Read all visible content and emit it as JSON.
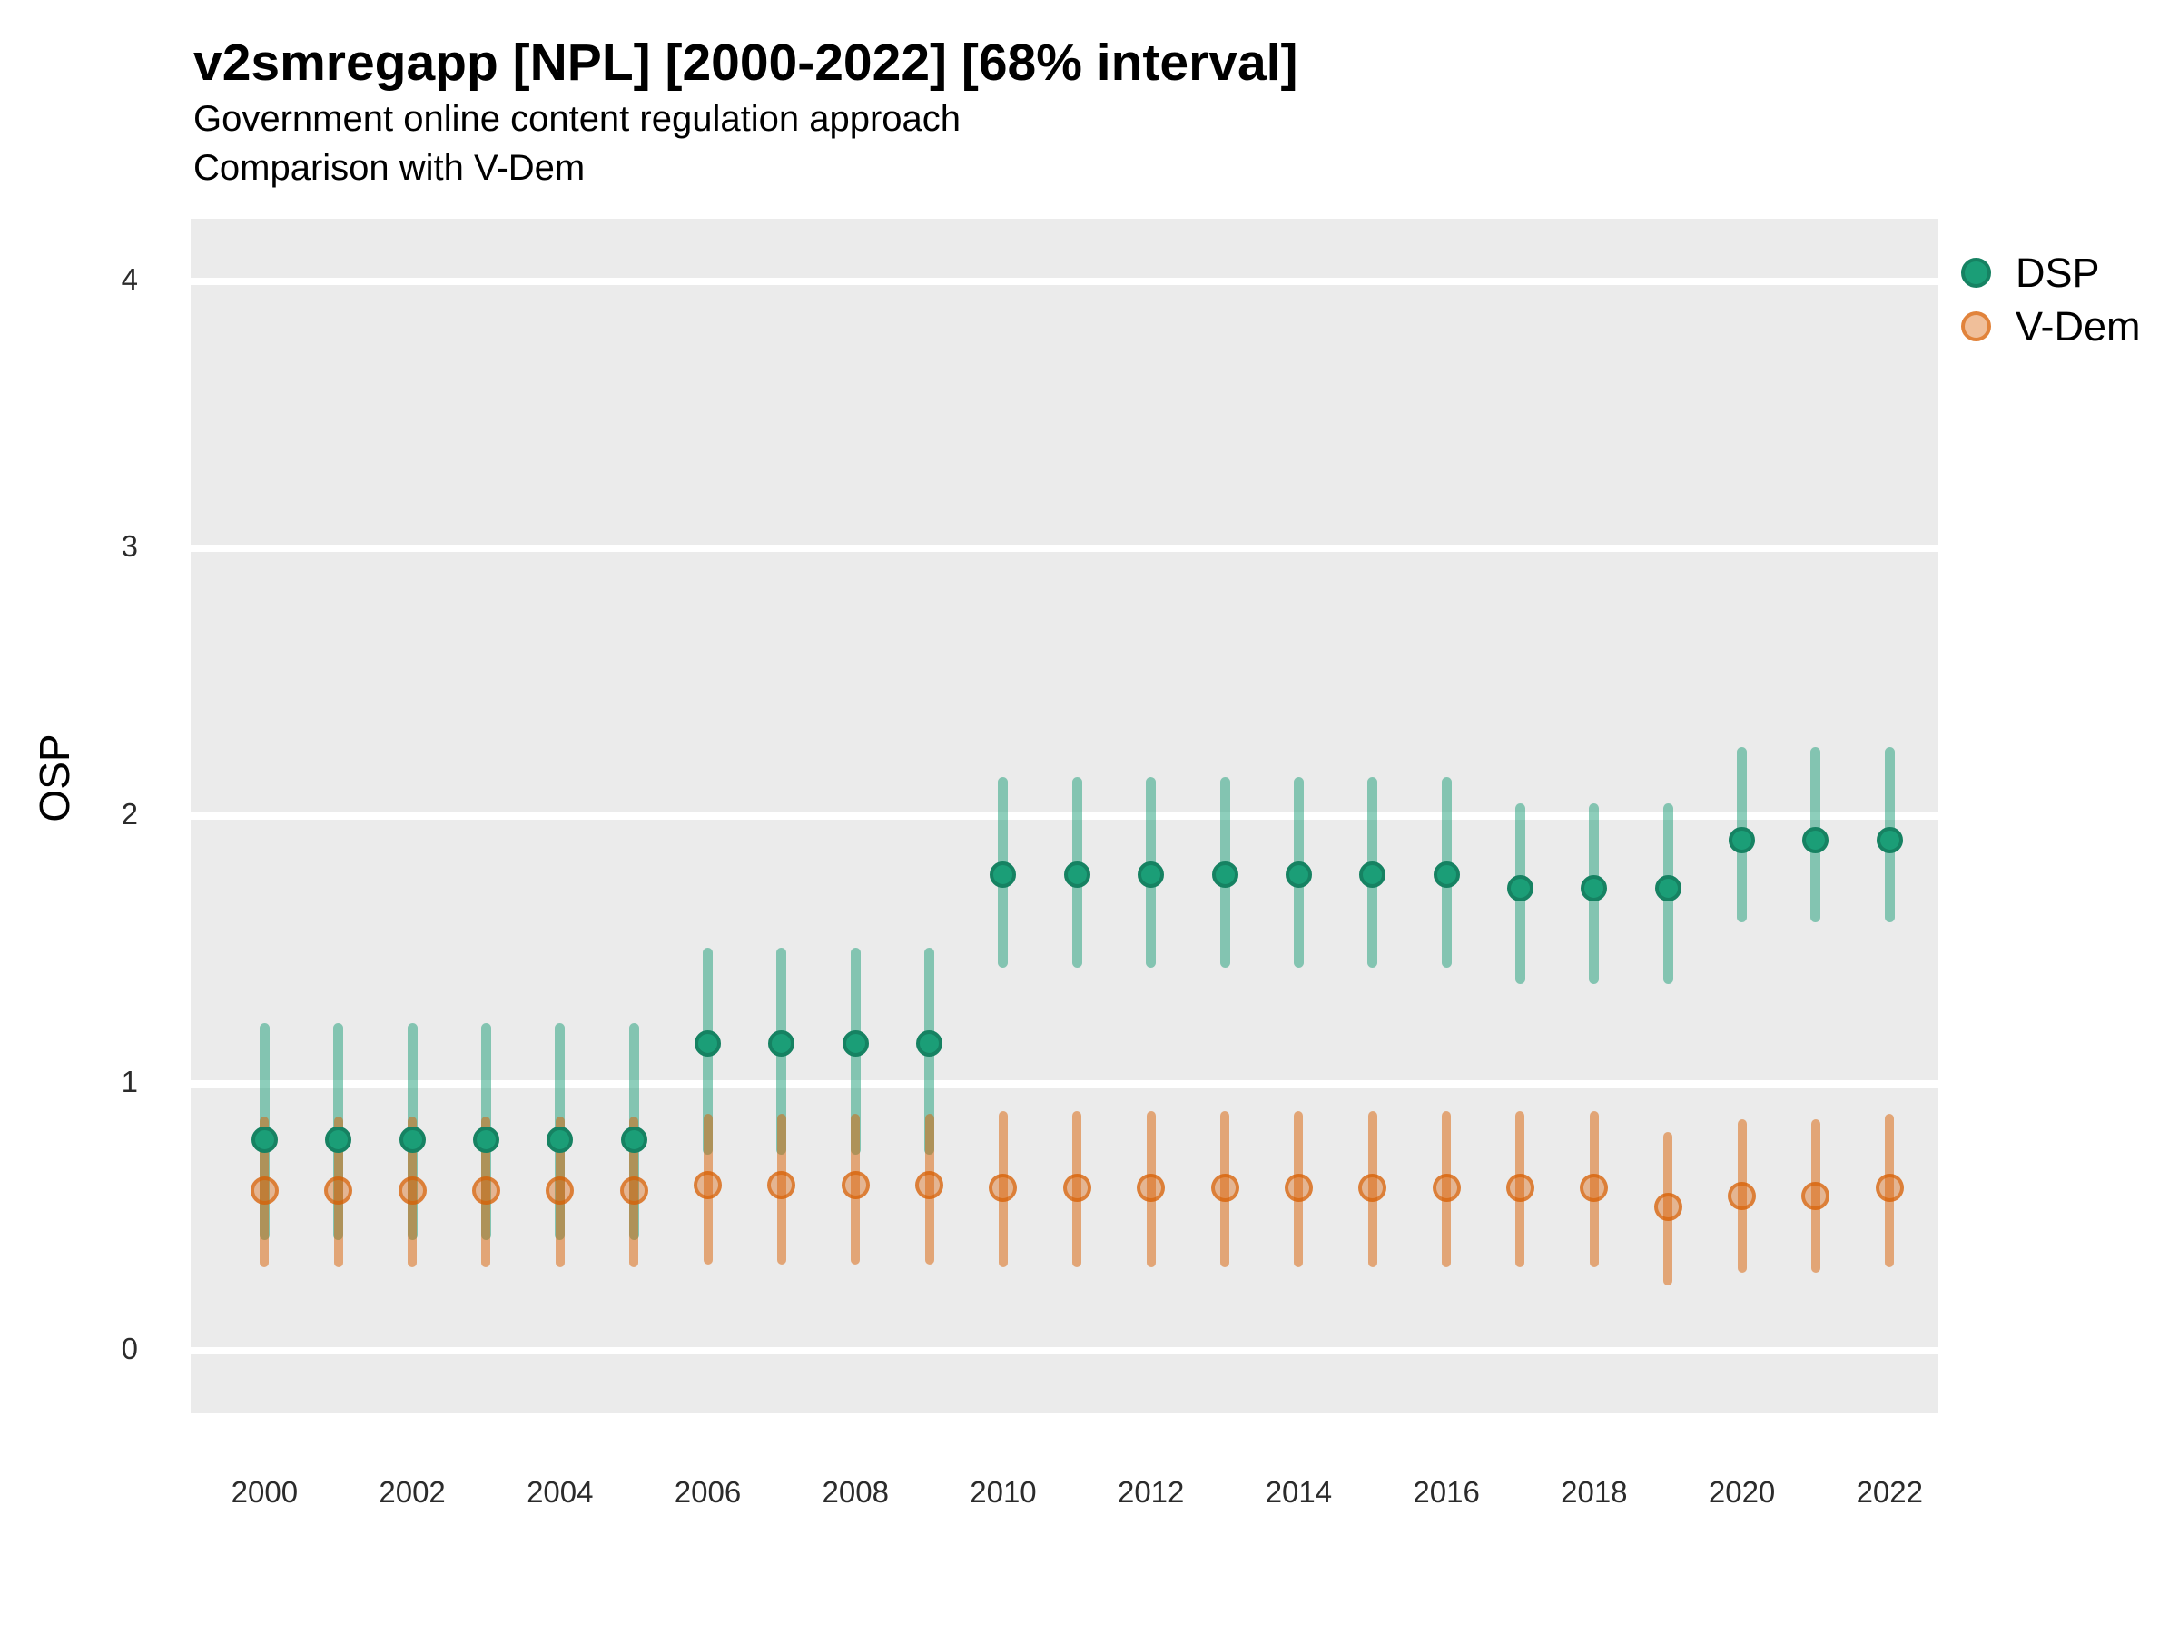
{
  "chart_data": {
    "type": "pointrange",
    "title": "v2smregapp [NPL] [2000-2022] [68% interval]",
    "subtitle_line1": "Government online content regulation approach",
    "subtitle_line2": "Comparison with V-Dem",
    "ylabel": "OSP",
    "xlabel": "",
    "panel_background": "#EBEBEB",
    "gridline_color": "#FFFFFF",
    "grid": "major horizontal only",
    "legend_position": "right-top",
    "xlim": [
      1999.0,
      2022.66
    ],
    "ylim": [
      -0.234,
      4.234
    ],
    "y_ticks": [
      0,
      1,
      2,
      3,
      4
    ],
    "x_tick_labels": [
      2000,
      2002,
      2004,
      2006,
      2008,
      2010,
      2012,
      2014,
      2016,
      2018,
      2020,
      2022
    ],
    "years": [
      2000,
      2001,
      2002,
      2003,
      2004,
      2005,
      2006,
      2007,
      2008,
      2009,
      2010,
      2011,
      2012,
      2013,
      2014,
      2015,
      2016,
      2017,
      2018,
      2019,
      2020,
      2021,
      2022
    ],
    "series": [
      {
        "name": "DSP",
        "color": "#1B9E77",
        "means": [
          0.79,
          0.79,
          0.79,
          0.79,
          0.79,
          0.79,
          1.15,
          1.15,
          1.15,
          1.15,
          1.78,
          1.78,
          1.78,
          1.78,
          1.78,
          1.78,
          1.78,
          1.73,
          1.73,
          1.73,
          1.91,
          1.91,
          1.91
        ],
        "lower": [
          0.43,
          0.43,
          0.43,
          0.43,
          0.43,
          0.43,
          0.75,
          0.75,
          0.75,
          0.75,
          1.45,
          1.45,
          1.45,
          1.45,
          1.45,
          1.45,
          1.45,
          1.39,
          1.39,
          1.39,
          1.62,
          1.62,
          1.62
        ],
        "upper": [
          1.21,
          1.21,
          1.21,
          1.21,
          1.21,
          1.21,
          1.49,
          1.49,
          1.49,
          1.49,
          2.13,
          2.13,
          2.13,
          2.13,
          2.13,
          2.13,
          2.13,
          2.03,
          2.03,
          2.03,
          2.24,
          2.24,
          2.24
        ]
      },
      {
        "name": "V-Dem",
        "color": "#D95F02",
        "means": [
          0.6,
          0.6,
          0.6,
          0.6,
          0.6,
          0.6,
          0.62,
          0.62,
          0.62,
          0.62,
          0.61,
          0.61,
          0.61,
          0.61,
          0.61,
          0.61,
          0.61,
          0.61,
          0.61,
          0.54,
          0.58,
          0.58,
          0.61
        ],
        "lower": [
          0.33,
          0.33,
          0.33,
          0.33,
          0.33,
          0.33,
          0.34,
          0.34,
          0.34,
          0.34,
          0.33,
          0.33,
          0.33,
          0.33,
          0.33,
          0.33,
          0.33,
          0.33,
          0.33,
          0.26,
          0.31,
          0.31,
          0.33
        ],
        "upper": [
          0.86,
          0.86,
          0.86,
          0.86,
          0.86,
          0.86,
          0.87,
          0.87,
          0.87,
          0.87,
          0.88,
          0.88,
          0.88,
          0.88,
          0.88,
          0.88,
          0.88,
          0.88,
          0.88,
          0.8,
          0.85,
          0.85,
          0.87
        ]
      }
    ]
  }
}
